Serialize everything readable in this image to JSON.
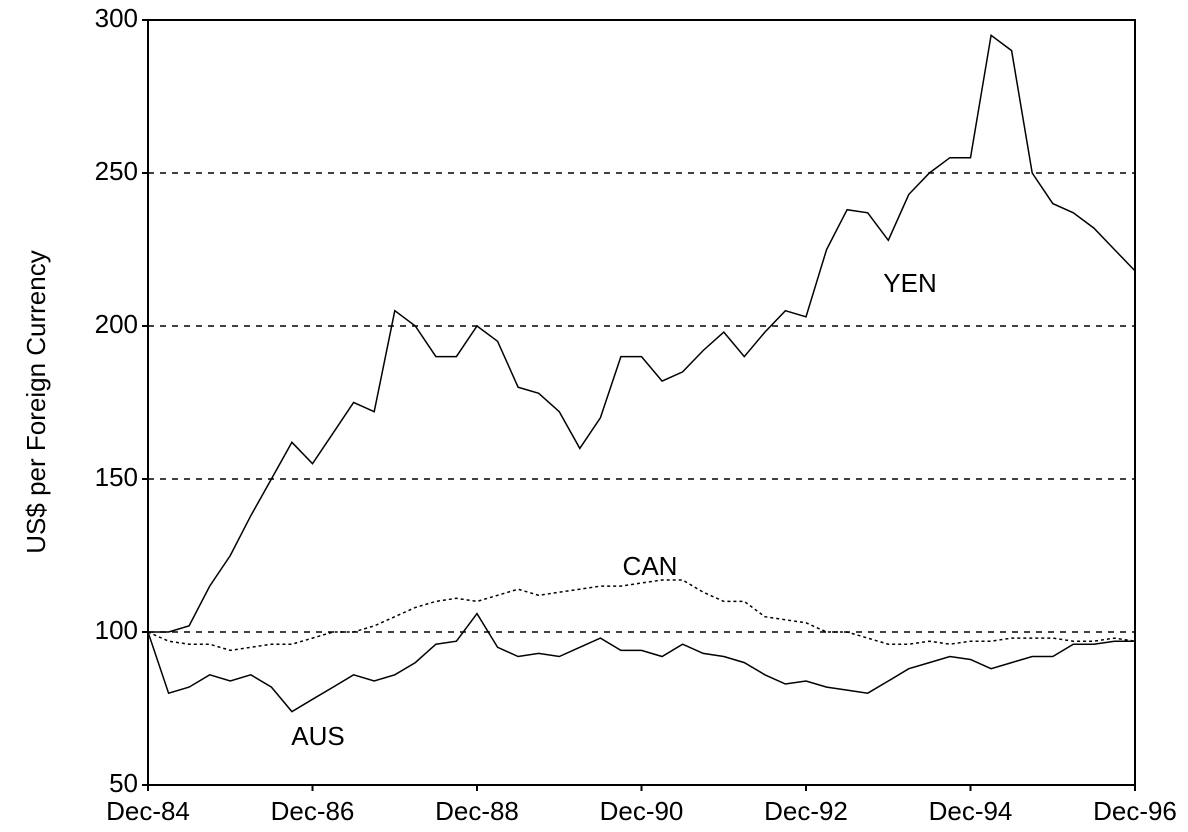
{
  "chart_data": {
    "type": "line",
    "ylabel": "US$ per Foreign Currency",
    "categories": [
      "Dec-84",
      null,
      null,
      null,
      null,
      null,
      null,
      null,
      "Dec-86",
      null,
      null,
      null,
      null,
      null,
      null,
      null,
      "Dec-88",
      null,
      null,
      null,
      null,
      null,
      null,
      null,
      "Dec-90",
      null,
      null,
      null,
      null,
      null,
      null,
      null,
      "Dec-92",
      null,
      null,
      null,
      null,
      null,
      null,
      null,
      "Dec-94",
      null,
      null,
      null,
      null,
      null,
      null,
      null,
      "Dec-96"
    ],
    "series": [
      {
        "name": "YEN",
        "color": "#000000",
        "dash": "solid",
        "values": [
          100,
          100,
          102,
          115,
          125,
          138,
          150,
          162,
          155,
          165,
          175,
          172,
          205,
          200,
          190,
          190,
          200,
          195,
          180,
          178,
          172,
          160,
          170,
          190,
          190,
          182,
          185,
          192,
          198,
          190,
          198,
          205,
          203,
          225,
          238,
          237,
          228,
          243,
          250,
          255,
          255,
          295,
          290,
          250,
          240,
          237,
          232,
          225,
          218
        ]
      },
      {
        "name": "CAN",
        "color": "#000000",
        "dash": "dotted",
        "values": [
          100,
          97,
          96,
          96,
          94,
          95,
          96,
          96,
          98,
          100,
          100,
          102,
          105,
          108,
          110,
          111,
          110,
          112,
          114,
          112,
          113,
          114,
          115,
          115,
          116,
          117,
          117,
          113,
          110,
          110,
          105,
          104,
          103,
          100,
          100,
          98,
          96,
          96,
          97,
          96,
          97,
          97,
          98,
          98,
          98,
          97,
          97,
          98,
          97
        ]
      },
      {
        "name": "AUS",
        "color": "#000000",
        "dash": "solid",
        "values": [
          100,
          80,
          82,
          86,
          84,
          86,
          82,
          74,
          78,
          82,
          86,
          84,
          86,
          90,
          96,
          97,
          106,
          95,
          92,
          93,
          92,
          95,
          98,
          94,
          94,
          92,
          96,
          93,
          92,
          90,
          86,
          83,
          84,
          82,
          81,
          80,
          84,
          88,
          90,
          92,
          91,
          88,
          90,
          92,
          92,
          96,
          96,
          97,
          97
        ]
      }
    ],
    "ylim": [
      50,
      300
    ],
    "yticks": [
      50,
      100,
      150,
      200,
      250,
      300
    ],
    "grid": true
  }
}
